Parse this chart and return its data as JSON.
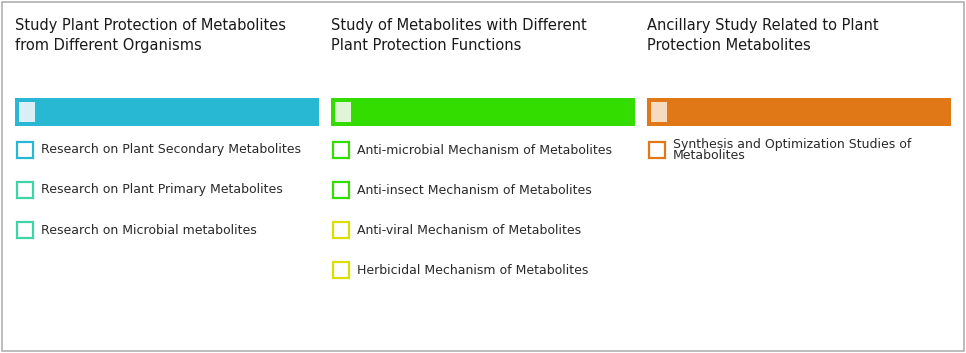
{
  "background_color": "#ffffff",
  "border_color": "#b0b0b0",
  "columns": [
    {
      "title": "Study Plant Protection of Metabolites\nfrom Different Organisms",
      "bar_color": "#29b8d4",
      "bar_highlight_color": "#daeef5",
      "items": [
        {
          "label": "Research on Plant Secondary Metabolites",
          "box_color": "#29b8d4"
        },
        {
          "label": "Research on Plant Primary Metabolites",
          "box_color": "#3dd4a8"
        },
        {
          "label": "Research on Microbial metabolites",
          "box_color": "#3dd4a8"
        }
      ]
    },
    {
      "title": "Study of Metabolites with Different\nPlant Protection Functions",
      "bar_color": "#33dd00",
      "bar_highlight_color": "#e0f5d8",
      "items": [
        {
          "label": "Anti-microbial Mechanism of Metabolites",
          "box_color": "#33dd00"
        },
        {
          "label": "Anti-insect Mechanism of Metabolites",
          "box_color": "#33dd00"
        },
        {
          "label": "Anti-viral Mechanism of Metabolites",
          "box_color": "#dddd00"
        },
        {
          "label": "Herbicidal Mechanism of Metabolites",
          "box_color": "#dddd00"
        }
      ]
    },
    {
      "title": "Ancillary Study Related to Plant\nProtection Metabolites",
      "bar_color": "#e07818",
      "bar_highlight_color": "#f5dcc0",
      "items": [
        {
          "label": "Synthesis and Optimization Studies of\nMetabolites",
          "box_color": "#e07818"
        }
      ]
    }
  ],
  "title_fontsize": 10.5,
  "item_fontsize": 9.0,
  "fig_width": 9.66,
  "fig_height": 3.53,
  "dpi": 100
}
